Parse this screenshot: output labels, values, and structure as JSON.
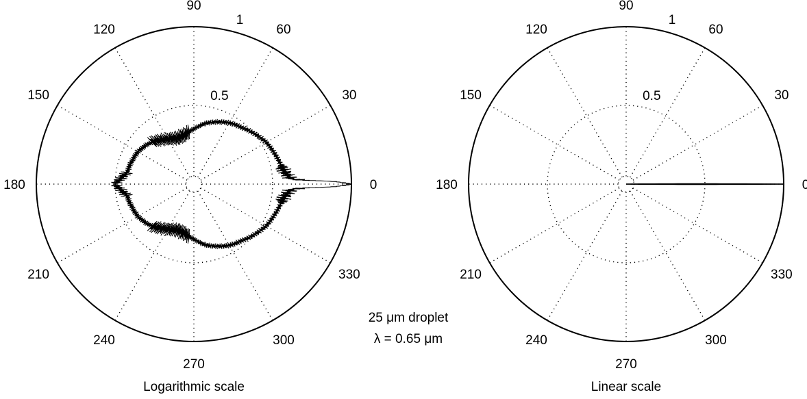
{
  "figure": {
    "annotation_line1": "25 μm droplet",
    "annotation_line2": "λ = 0.65 μm"
  },
  "chart_data": [
    {
      "type": "polar-line",
      "caption": "Logarithmic scale",
      "radial_scale": "log",
      "radial_tick_labels": [
        "0.5",
        "1"
      ],
      "angle_tick_labels": [
        "0",
        "30",
        "60",
        "90",
        "120",
        "150",
        "180",
        "210",
        "240",
        "270",
        "300",
        "330"
      ],
      "grid": true,
      "line_color": "#000000",
      "series": [
        {
          "theta_deg": [
            0,
            1,
            2,
            3,
            5,
            8,
            10,
            20,
            30,
            40,
            50,
            60,
            70,
            80,
            90,
            100,
            110,
            120,
            130,
            140,
            150,
            160,
            170,
            175,
            180
          ],
          "r": [
            1.0,
            0.9,
            0.7,
            0.62,
            0.6,
            0.58,
            0.57,
            0.55,
            0.53,
            0.5,
            0.47,
            0.45,
            0.42,
            0.39,
            0.35,
            0.32,
            0.31,
            0.33,
            0.36,
            0.39,
            0.41,
            0.42,
            0.43,
            0.46,
            0.5
          ]
        }
      ]
    },
    {
      "type": "polar-line",
      "caption": "Linear scale",
      "radial_scale": "linear",
      "radial_tick_labels": [
        "0.5",
        "1"
      ],
      "angle_tick_labels": [
        "0",
        "30",
        "60",
        "90",
        "120",
        "150",
        "180",
        "210",
        "240",
        "270",
        "300",
        "330"
      ],
      "grid": true,
      "line_color": "#000000",
      "series": [
        {
          "theta_deg": [
            0,
            0.2,
            0.5,
            1,
            2,
            5,
            90,
            180
          ],
          "r": [
            1.0,
            0.6,
            0.15,
            0.02,
            0.0,
            0.0,
            0.0,
            0.0
          ]
        }
      ]
    }
  ]
}
